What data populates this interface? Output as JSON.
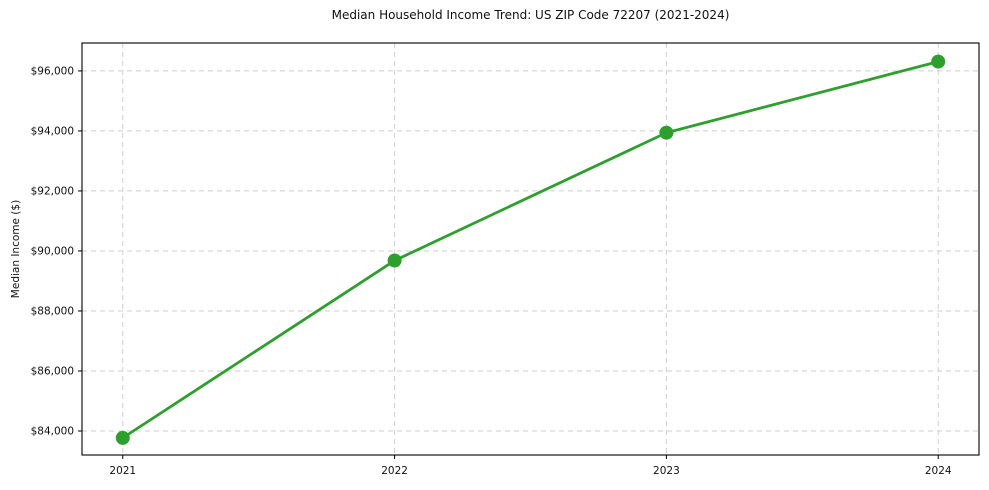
{
  "chart_data": {
    "type": "line",
    "title": "Median Household Income Trend: US ZIP Code 72207 (2021-2024)",
    "xlabel": "",
    "ylabel": "Median Income ($)",
    "categories": [
      "2021",
      "2022",
      "2023",
      "2024"
    ],
    "series": [
      {
        "values": [
          83770,
          89680,
          93940,
          96310
        ],
        "color": "#2ca02c",
        "marker": "circle"
      }
    ],
    "yticks": [
      84000,
      86000,
      88000,
      90000,
      92000,
      94000,
      96000
    ],
    "ytick_labels": [
      "$84,000",
      "$86,000",
      "$88,000",
      "$90,000",
      "$92,000",
      "$94,000",
      "$96,000"
    ],
    "ylim": [
      83200,
      96930
    ],
    "x_margin": 0.15,
    "grid": "both",
    "grid_style": "dashed",
    "grid_color": "#cfcfcf",
    "axis_color": "#000000",
    "text_color": "#111111",
    "legend": "none"
  }
}
